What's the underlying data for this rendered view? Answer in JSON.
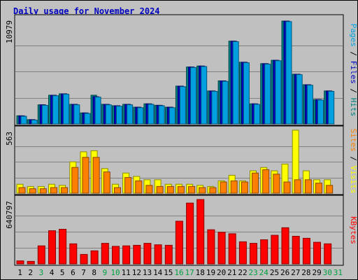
{
  "chart_data": {
    "type": "bar",
    "title": "Daily usage for November 2024",
    "days": [
      "1",
      "2",
      "3",
      "4",
      "5",
      "6",
      "7",
      "8",
      "9",
      "10",
      "11",
      "12",
      "13",
      "14",
      "15",
      "16",
      "17",
      "18",
      "19",
      "20",
      "21",
      "22",
      "23",
      "24",
      "25",
      "26",
      "27",
      "28",
      "29",
      "30",
      "31"
    ],
    "weekend_days": [
      "3",
      "9",
      "10",
      "16",
      "17",
      "23",
      "24",
      "30",
      "31"
    ],
    "panels": {
      "top": {
        "max_label": "10979",
        "ylim": [
          0,
          10979
        ],
        "legend": [
          {
            "text": "Pages",
            "color": "#00a0e0"
          },
          {
            "text": " / ",
            "color": "#000000"
          },
          {
            "text": "Files",
            "color": "#0000c0"
          },
          {
            "text": " / ",
            "color": "#000000"
          },
          {
            "text": "Hits",
            "color": "#008080"
          }
        ],
        "series": [
          {
            "name": "Hits",
            "color": "#008080",
            "values": [
              850,
              450,
              2000,
              3000,
              3150,
              2050,
              1150,
              3000,
              2050,
              1900,
              2050,
              1750,
              2100,
              1950,
              1750,
              3950,
              5950,
              6050,
              3450,
              4500,
              8650,
              6450,
              2100,
              6300,
              6650,
              10750,
              5200,
              4100,
              2550,
              3450,
              0
            ]
          },
          {
            "name": "Files",
            "color": "#0000c0",
            "values": [
              850,
              450,
              2000,
              3000,
              3150,
              2050,
              1150,
              2850,
              2050,
              1900,
              2050,
              1750,
              2100,
              1950,
              1750,
              3950,
              5950,
              6050,
              3450,
              4500,
              8650,
              6450,
              2100,
              6300,
              6650,
              10750,
              5200,
              4100,
              2550,
              3450,
              0
            ]
          },
          {
            "name": "Pages",
            "color": "#00a0e0",
            "values": [
              800,
              400,
              1950,
              2950,
              3100,
              2000,
              1100,
              2800,
              2000,
              1850,
              2000,
              1700,
              2050,
              1900,
              1700,
              3900,
              5900,
              6000,
              3400,
              4450,
              8600,
              6400,
              2050,
              6250,
              6600,
              10700,
              5150,
              4050,
              2500,
              3400,
              0
            ]
          }
        ]
      },
      "middle": {
        "max_label": "563",
        "ylim": [
          0,
          563
        ],
        "legend": [
          {
            "text": "Sites",
            "color": "#ff8000"
          },
          {
            "text": " / ",
            "color": "#000000"
          },
          {
            "text": "Visits",
            "color": "#ffff00"
          }
        ],
        "series": [
          {
            "name": "Visits",
            "color": "#ffff00",
            "values": [
              80,
              60,
              60,
              80,
              70,
              280,
              370,
              380,
              220,
              80,
              180,
              150,
              120,
              120,
              80,
              80,
              80,
              70,
              60,
              110,
              160,
              110,
              200,
              230,
              200,
              260,
              563,
              200,
              120,
              120,
              0
            ]
          },
          {
            "name": "Sites",
            "color": "#ff8000",
            "values": [
              50,
              40,
              40,
              50,
              50,
              230,
              320,
              320,
              190,
              50,
              140,
              110,
              70,
              60,
              60,
              60,
              60,
              50,
              50,
              100,
              110,
              100,
              180,
              210,
              170,
              100,
              120,
              120,
              90,
              70,
              0
            ]
          }
        ]
      },
      "bottom": {
        "max_label": "640797",
        "ylim": [
          0,
          640797
        ],
        "legend": [
          {
            "text": "KBytes",
            "color": "#ff0000"
          }
        ],
        "series": [
          {
            "name": "KBytes",
            "color": "#ff0000",
            "values": [
              30000,
              25000,
              180000,
              330000,
              345000,
              200000,
              95000,
              130000,
              205000,
              175000,
              180000,
              185000,
              205000,
              190000,
              185000,
              425000,
              605000,
              640797,
              340000,
              315000,
              300000,
              220000,
              205000,
              240000,
              285000,
              360000,
              275000,
              255000,
              215000,
              200000,
              0
            ]
          }
        ]
      }
    }
  }
}
